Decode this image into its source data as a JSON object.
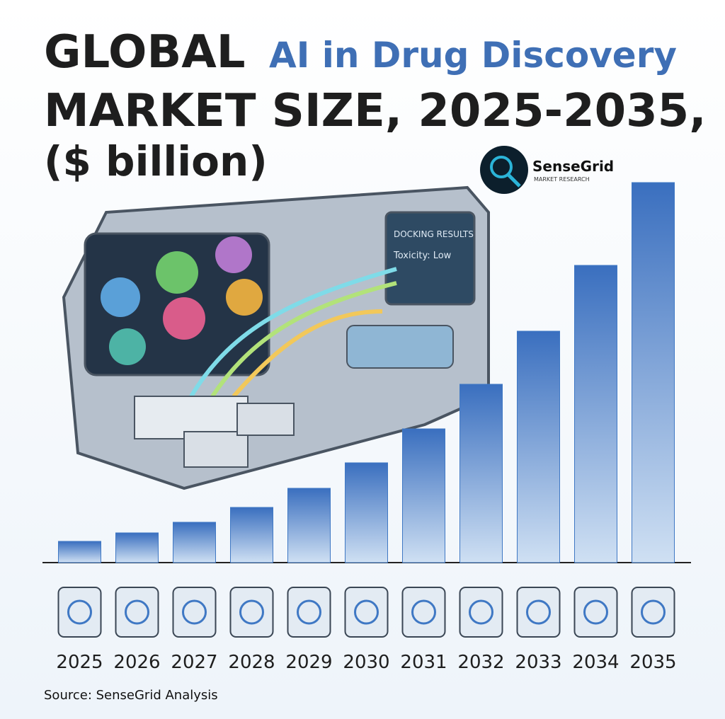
{
  "chart_data": {
    "type": "bar",
    "title": [
      "GLOBAL",
      "AI in Drug Discovery",
      "MARKET SIZE, 2025-2035,",
      "($ billion)"
    ],
    "logo": {
      "name": "SenseGrid",
      "tagline": "MARKET RESEARCH"
    },
    "illustration_texts": [
      "DOCKING RESULTS",
      "Toxicity: Low"
    ],
    "categories": [
      "2025",
      "2026",
      "2027",
      "2028",
      "2029",
      "2030",
      "2031",
      "2032",
      "2033",
      "2034",
      "2035"
    ],
    "values": [
      1.0,
      1.4,
      1.9,
      2.6,
      3.5,
      4.7,
      6.3,
      8.4,
      10.9,
      14.0,
      17.9
    ],
    "color": "#3f78c4",
    "ylim": [
      0,
      18
    ],
    "source": "Source: SenseGrid Analysis"
  }
}
